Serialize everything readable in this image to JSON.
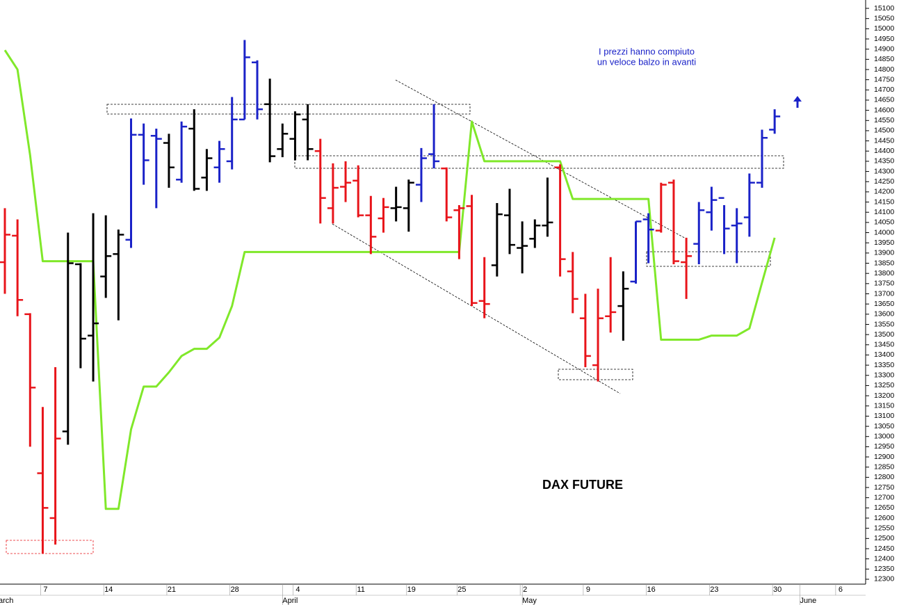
{
  "chart_data": {
    "type": "ohlc",
    "title": "DAX FUTURE",
    "annotations": [
      "I prezzi hanno compiuto",
      "un veloce balzo in avanti"
    ],
    "months": [
      "March",
      "April",
      "May",
      "June"
    ],
    "categories": [
      null,
      null,
      null,
      "7",
      null,
      null,
      null,
      null,
      "14",
      null,
      null,
      null,
      null,
      "21",
      null,
      null,
      null,
      null,
      "28",
      null,
      null,
      null,
      null,
      "4",
      null,
      null,
      null,
      null,
      "11",
      null,
      null,
      null,
      "19",
      null,
      null,
      null,
      "25",
      null,
      null,
      null,
      null,
      "2",
      null,
      null,
      null,
      null,
      "9",
      null,
      null,
      null,
      null,
      "16",
      null,
      null,
      null,
      null,
      "23",
      null,
      null,
      null,
      null,
      "30",
      null,
      null,
      null,
      null,
      "6",
      null
    ],
    "ohlc": {
      "open": [
        13855,
        13985,
        13600,
        12820,
        12600,
        13025,
        13845,
        13495,
        13785,
        13895,
        13965,
        14480,
        14475,
        14440,
        14260,
        14510,
        14270,
        14320,
        14350,
        14555,
        14835,
        14630,
        14410,
        14460,
        14555,
        14400,
        14120,
        14225,
        14255,
        14085,
        14070,
        14120,
        14120,
        14235,
        14385,
        14315,
        14110,
        14130,
        13665,
        13840,
        14085,
        13925,
        13970,
        14035,
        14320,
        13810,
        13580,
        13350,
        13590,
        13640,
        13760,
        14065,
        14010,
        14245,
        13855,
        13945,
        14100,
        14170,
        14035,
        14075,
        14245,
        14505,
        null,
        null,
        null,
        null,
        null,
        null
      ],
      "high": [
        14120,
        14065,
        13605,
        13145,
        13340,
        14000,
        13850,
        14095,
        14085,
        14015,
        14560,
        14535,
        14510,
        14485,
        14545,
        14605,
        14410,
        14450,
        14665,
        14945,
        14845,
        14755,
        14535,
        14595,
        14630,
        14460,
        14340,
        14350,
        14330,
        14180,
        14170,
        14225,
        14260,
        14415,
        14630,
        14320,
        14135,
        14185,
        13880,
        14145,
        14215,
        14055,
        14065,
        14270,
        14335,
        13905,
        13700,
        13725,
        13880,
        13810,
        14055,
        14095,
        14245,
        14260,
        13975,
        14150,
        14225,
        14135,
        14120,
        14290,
        14505,
        14605,
        null,
        null,
        null,
        null,
        null,
        null
      ],
      "low": [
        13700,
        13590,
        12950,
        12425,
        12470,
        12960,
        13335,
        13270,
        13680,
        13570,
        13925,
        14235,
        14120,
        14220,
        14245,
        14205,
        14205,
        14245,
        14310,
        14555,
        14555,
        14345,
        14370,
        14355,
        14355,
        14045,
        14045,
        14150,
        14075,
        13895,
        14000,
        14055,
        14005,
        14150,
        14315,
        14055,
        13870,
        13640,
        13580,
        13785,
        13895,
        13800,
        13925,
        13980,
        13785,
        13605,
        13340,
        13270,
        13510,
        13470,
        13750,
        13850,
        14000,
        13845,
        13675,
        13845,
        14010,
        13895,
        13850,
        13980,
        14220,
        14485,
        null,
        null,
        null,
        null,
        null,
        null
      ],
      "close": [
        13990,
        13670,
        13240,
        12650,
        12990,
        13850,
        13480,
        13555,
        13885,
        13990,
        14480,
        14355,
        14460,
        14320,
        14520,
        14215,
        14365,
        14410,
        14555,
        14860,
        14605,
        14375,
        14485,
        14580,
        14410,
        14170,
        14220,
        14245,
        14085,
        13980,
        14125,
        14125,
        14245,
        14365,
        14350,
        14075,
        14120,
        13655,
        13650,
        14090,
        13940,
        13935,
        14035,
        14050,
        13870,
        13675,
        13395,
        13580,
        13610,
        13725,
        14055,
        14015,
        14235,
        13860,
        13885,
        14110,
        14160,
        14020,
        14045,
        14245,
        14465,
        14570,
        null,
        null,
        null,
        null,
        null,
        null
      ],
      "colors": [
        "#e8141a",
        "#e8141a",
        "#e8141a",
        "#e8141a",
        "#e8141a",
        "#000000",
        "#000000",
        "#000000",
        "#000000",
        "#000000",
        "#1a22c8",
        "#1a22c8",
        "#1a22c8",
        "#000000",
        "#1a22c8",
        "#000000",
        "#000000",
        "#1a22c8",
        "#1a22c8",
        "#1a22c8",
        "#1a22c8",
        "#000000",
        "#000000",
        "#000000",
        "#000000",
        "#e8141a",
        "#e8141a",
        "#e8141a",
        "#e8141a",
        "#e8141a",
        "#e8141a",
        "#000000",
        "#000000",
        "#1a22c8",
        "#1a22c8",
        "#e8141a",
        "#e8141a",
        "#e8141a",
        "#e8141a",
        "#000000",
        "#000000",
        "#000000",
        "#000000",
        "#000000",
        "#e8141a",
        "#e8141a",
        "#e8141a",
        "#e8141a",
        "#e8141a",
        "#000000",
        "#1a22c8",
        "#1a22c8",
        "#e8141a",
        "#e8141a",
        "#e8141a",
        "#1a22c8",
        "#1a22c8",
        "#1a22c8",
        "#1a22c8",
        "#1a22c8",
        "#1a22c8",
        "#1a22c8",
        null,
        null,
        null,
        null,
        null,
        null
      ]
    },
    "line": {
      "color": "#80e82a",
      "values": [
        14895,
        14800,
        14380,
        13860,
        13860,
        13860,
        13860,
        13860,
        12645,
        12645,
        13035,
        13245,
        13245,
        13315,
        13395,
        13430,
        13430,
        13485,
        13640,
        13905,
        13905,
        13905,
        13905,
        13905,
        13905,
        13905,
        13905,
        13905,
        13905,
        13905,
        13905,
        13905,
        13905,
        13905,
        13905,
        13905,
        13905,
        14545,
        14350,
        14350,
        14350,
        14350,
        14350,
        14350,
        14350,
        14165,
        14165,
        14165,
        14165,
        14165,
        14165,
        14165,
        13475,
        13475,
        13475,
        13475,
        13495,
        13495,
        13495,
        13530,
        13755,
        13975,
        null,
        null,
        null,
        null,
        null,
        null
      ]
    },
    "ylim": [
      12276,
      15141
    ],
    "yticks": [
      12300,
      12350,
      12400,
      12450,
      12500,
      12550,
      12600,
      12650,
      12700,
      12750,
      12800,
      12850,
      12900,
      12950,
      13000,
      13050,
      13100,
      13150,
      13200,
      13250,
      13300,
      13350,
      13400,
      13450,
      13500,
      13550,
      13600,
      13650,
      13700,
      13750,
      13800,
      13850,
      13900,
      13950,
      14000,
      14050,
      14100,
      14150,
      14200,
      14250,
      14300,
      14350,
      14400,
      14450,
      14500,
      14550,
      14600,
      14650,
      14700,
      14750,
      14800,
      14850,
      14900,
      14950,
      15000,
      15050,
      15100
    ],
    "grid": false
  }
}
